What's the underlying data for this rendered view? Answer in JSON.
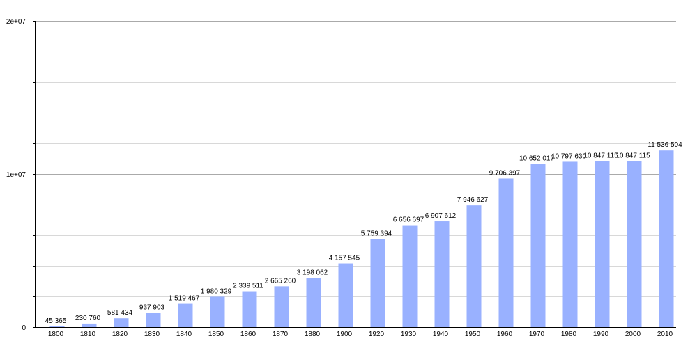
{
  "chart_data": {
    "type": "bar",
    "title": "",
    "xlabel": "",
    "ylabel": "",
    "ylim": [
      0,
      20000000
    ],
    "grid": true,
    "bar_color": "#99b1ff",
    "y_ticks": [
      {
        "value": 0,
        "label": "0"
      },
      {
        "value": 10000000,
        "label": "1e+07"
      },
      {
        "value": 20000000,
        "label": "2e+07"
      }
    ],
    "categories": [
      "1800",
      "1810",
      "1820",
      "1830",
      "1840",
      "1850",
      "1860",
      "1870",
      "1880",
      "1900",
      "1920",
      "1930",
      "1940",
      "1950",
      "1960",
      "1970",
      "1980",
      "1990",
      "2000",
      "2010"
    ],
    "values": [
      45365,
      230760,
      581434,
      937903,
      1519467,
      1980329,
      2339511,
      2665260,
      3198062,
      4157545,
      5759394,
      6656697,
      6907612,
      7946627,
      9706397,
      10652017,
      10797630,
      10847115,
      10847115,
      11536504
    ],
    "value_labels": [
      "45 365",
      "230 760",
      "581 434",
      "937 903",
      "1 519 467",
      "1 980 329",
      "2 339 511",
      "2 665 260",
      "3 198 062",
      "4 157 545",
      "5 759 394",
      "6 656 697",
      "6 907 612",
      "7 946 627",
      "9 706 397",
      "10 652 017",
      "10 797 630",
      "10 847 115",
      "10 847 115",
      "11 536 504"
    ]
  }
}
